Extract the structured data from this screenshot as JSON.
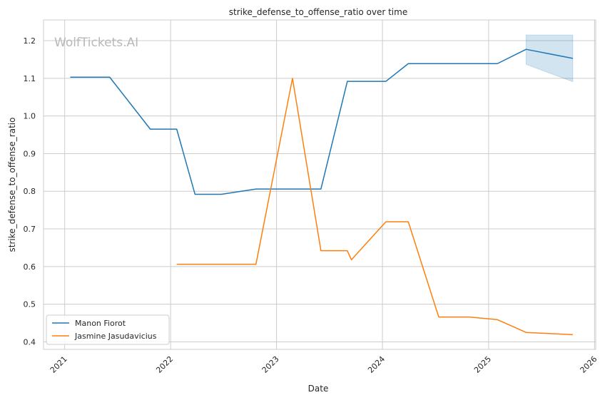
{
  "chart_data": {
    "type": "line",
    "title": "strike_defense_to_offense_ratio over time",
    "xlabel": "Date",
    "ylabel": "strike_defense_to_offense_ratio",
    "watermark": "WolfTickets.AI",
    "xlim": [
      "2020-10-20",
      "2026-01-05"
    ],
    "ylim": [
      0.38,
      1.255
    ],
    "x_ticks": [
      "2021",
      "2022",
      "2023",
      "2024",
      "2025",
      "2026"
    ],
    "y_ticks": [
      "0.4",
      "0.5",
      "0.6",
      "0.7",
      "0.8",
      "0.9",
      "1.0",
      "1.1",
      "1.2"
    ],
    "grid": true,
    "legend_position": "lower-left",
    "series": [
      {
        "name": "Manon Fiorot",
        "color": "#1f77b4",
        "points": [
          {
            "x": "2021-01-20",
            "y": 1.103
          },
          {
            "x": "2021-06-05",
            "y": 1.103
          },
          {
            "x": "2021-10-23",
            "y": 0.965
          },
          {
            "x": "2022-01-22",
            "y": 0.965
          },
          {
            "x": "2022-03-26",
            "y": 0.792
          },
          {
            "x": "2022-06-25",
            "y": 0.792
          },
          {
            "x": "2022-10-22",
            "y": 0.806
          },
          {
            "x": "2023-06-03",
            "y": 0.806
          },
          {
            "x": "2023-09-02",
            "y": 1.092
          },
          {
            "x": "2024-01-13",
            "y": 1.092
          },
          {
            "x": "2024-03-30",
            "y": 1.139
          },
          {
            "x": "2025-01-31",
            "y": 1.139
          },
          {
            "x": "2025-05-10",
            "y": 1.177
          },
          {
            "x": "2025-10-18",
            "y": 1.153
          }
        ],
        "band": [
          {
            "x": "2025-05-10",
            "low": 1.137,
            "high": 1.215
          },
          {
            "x": "2025-10-18",
            "low": 1.091,
            "high": 1.215
          }
        ]
      },
      {
        "name": "Jasmine Jasudavicius",
        "color": "#ff7f0e",
        "points": [
          {
            "x": "2022-01-22",
            "y": 0.606
          },
          {
            "x": "2022-10-22",
            "y": 0.606
          },
          {
            "x": "2023-02-25",
            "y": 1.1
          },
          {
            "x": "2023-06-03",
            "y": 0.642
          },
          {
            "x": "2023-09-02",
            "y": 0.642
          },
          {
            "x": "2023-09-16",
            "y": 0.618
          },
          {
            "x": "2024-01-13",
            "y": 0.719
          },
          {
            "x": "2024-03-30",
            "y": 0.719
          },
          {
            "x": "2024-07-13",
            "y": 0.466
          },
          {
            "x": "2024-10-26",
            "y": 0.466
          },
          {
            "x": "2025-01-31",
            "y": 0.459
          },
          {
            "x": "2025-05-10",
            "y": 0.425
          },
          {
            "x": "2025-10-18",
            "y": 0.419
          }
        ]
      }
    ]
  }
}
